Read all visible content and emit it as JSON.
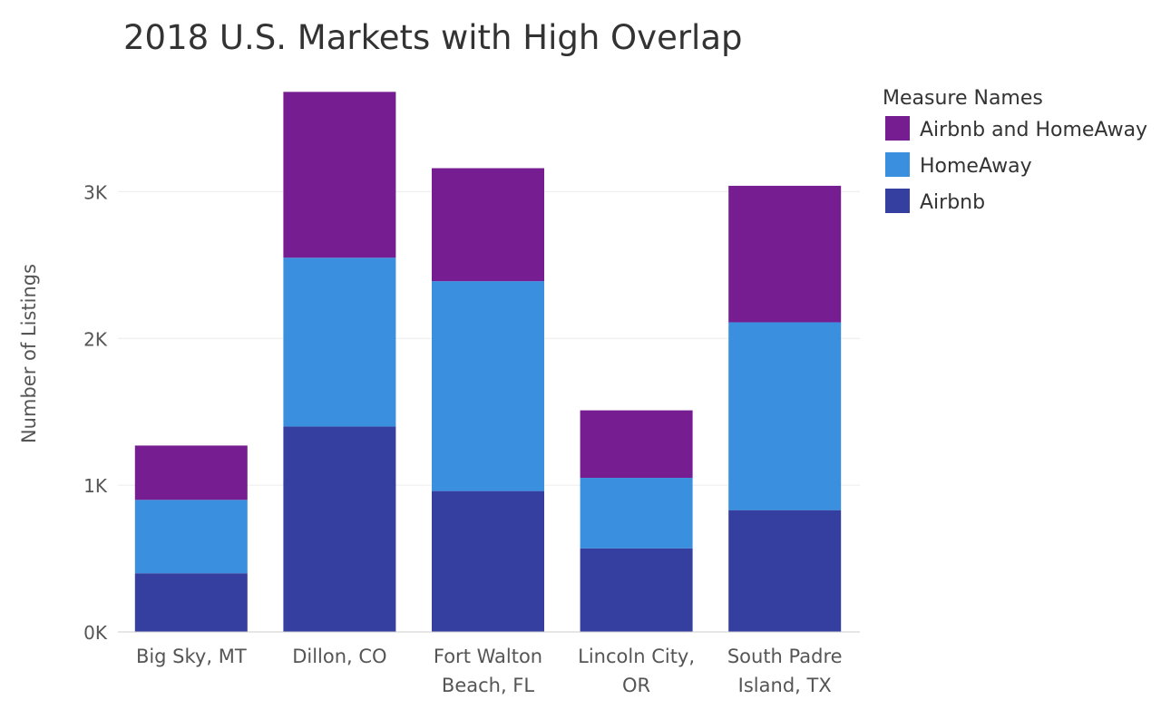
{
  "chart_data": {
    "type": "bar",
    "stacked": true,
    "title": "2018 U.S. Markets with High Overlap",
    "xlabel": "",
    "ylabel": "Number of Listings",
    "ylim": [
      0,
      3750
    ],
    "yticks": [
      0,
      1000,
      2000,
      3000
    ],
    "ytick_labels": [
      "0K",
      "1K",
      "2K",
      "3K"
    ],
    "grid": true,
    "legend_position": "right",
    "legend_title": "Measure Names",
    "categories": [
      [
        "Big Sky, MT"
      ],
      [
        "Dillon, CO"
      ],
      [
        "Fort Walton",
        "Beach, FL"
      ],
      [
        "Lincoln City,",
        "OR"
      ],
      [
        "South Padre",
        "Island, TX"
      ]
    ],
    "series": [
      {
        "name": "Airbnb",
        "color": "#353f9f",
        "values": [
          400,
          1400,
          960,
          570,
          830
        ]
      },
      {
        "name": "HomeAway",
        "color": "#3a90df",
        "values": [
          500,
          1150,
          1430,
          480,
          1280
        ]
      },
      {
        "name": "Airbnb and HomeAway",
        "color": "#761d91",
        "values": [
          370,
          1130,
          770,
          460,
          930
        ]
      }
    ],
    "legend_order": [
      "Airbnb and HomeAway",
      "HomeAway",
      "Airbnb"
    ]
  }
}
